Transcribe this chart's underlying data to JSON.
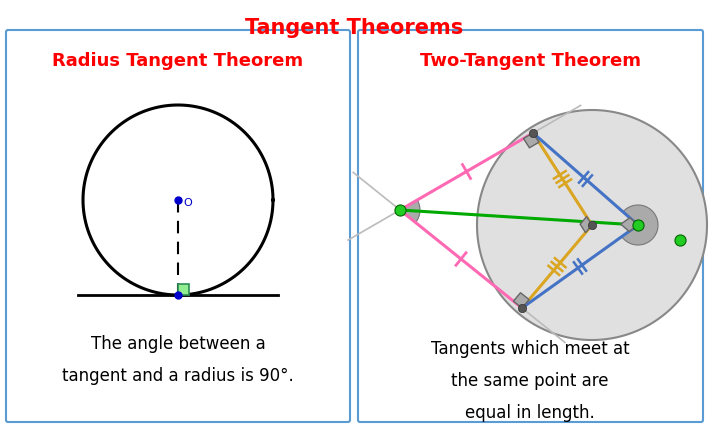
{
  "title": "Tangent Theorems",
  "title_color": "#FF0000",
  "title_fontsize": 15,
  "left_panel_title": "Radius Tangent Theorem",
  "left_panel_title_color": "#FF0000",
  "left_panel_text": "The angle between a\ntangent and a radius is 90°.",
  "right_panel_title": "Two-Tangent Theorem",
  "right_panel_title_color": "#FF0000",
  "right_panel_text": "Tangents which meet at\nthe same point are\nequal in length.",
  "panel_border_color": "#5B9BD5",
  "background_color": "#FFFFFF"
}
